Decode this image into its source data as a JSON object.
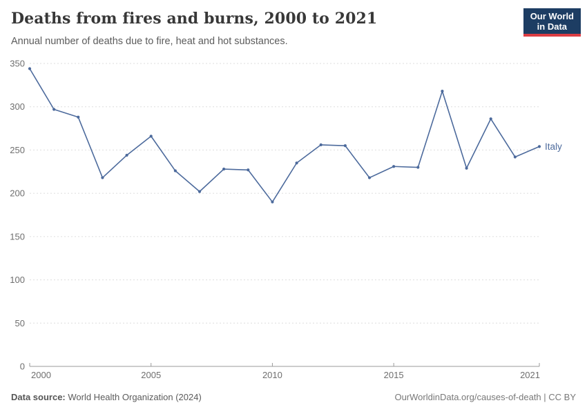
{
  "header": {
    "title": "Deaths from fires and burns, 2000 to 2021",
    "subtitle": "Annual number of deaths due to fire, heat and hot substances.",
    "logo_line1": "Our World",
    "logo_line2": "in Data"
  },
  "chart_data": {
    "type": "line",
    "title": "Deaths from fires and burns, 2000 to 2021",
    "xlabel": "",
    "ylabel": "",
    "xlim": [
      2000,
      2021
    ],
    "ylim": [
      0,
      350
    ],
    "yticks": [
      0,
      50,
      100,
      150,
      200,
      250,
      300,
      350
    ],
    "xticks": [
      2000,
      2005,
      2010,
      2015,
      2021
    ],
    "grid": "horizontal-dashed",
    "legend_position": "line-end-label",
    "x": [
      2000,
      2001,
      2002,
      2003,
      2004,
      2005,
      2006,
      2007,
      2008,
      2009,
      2010,
      2011,
      2012,
      2013,
      2014,
      2015,
      2016,
      2017,
      2018,
      2019,
      2020,
      2021
    ],
    "series": [
      {
        "name": "Italy",
        "color": "#4C6A9C",
        "values": [
          344,
          297,
          288,
          218,
          244,
          266,
          226,
          202,
          228,
          227,
          190,
          235,
          256,
          255,
          218,
          231,
          230,
          318,
          229,
          286,
          242,
          254
        ]
      }
    ]
  },
  "footer": {
    "source_bold": "Data source:",
    "source_rest": " World Health Organization (2024)",
    "license": "OurWorldinData.org/causes-of-death | CC BY"
  },
  "colors": {
    "line": "#4C6A9C",
    "grid": "#dddddd",
    "axis": "#9a9a9a",
    "tick_text": "#6e6e6e",
    "logo_bg": "#1d3d63",
    "logo_stripe": "#dc3d43"
  }
}
